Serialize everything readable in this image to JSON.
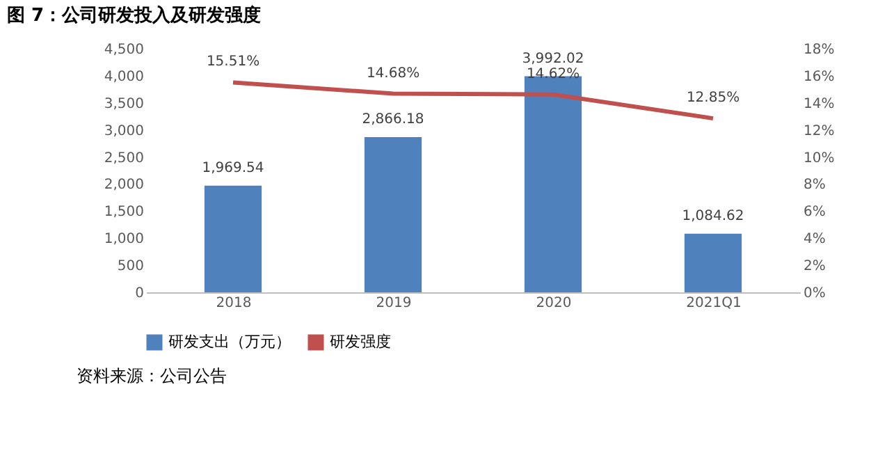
{
  "chart_data": {
    "type": "bar",
    "title": "图 7：公司研发投入及研发强度",
    "categories": [
      "2018",
      "2019",
      "2020",
      "2021Q1"
    ],
    "series": [
      {
        "name": "研发支出（万元）",
        "color": "#4f81bd",
        "values": [
          1969.54,
          2866.18,
          3992.02,
          1084.62
        ],
        "value_labels": [
          "1,969.54",
          "2,866.18",
          "3,992.02",
          "1,084.62"
        ]
      },
      {
        "name": "研发强度",
        "type": "line",
        "axis": "y2",
        "color": "#c0504d",
        "values": [
          15.51,
          14.68,
          14.62,
          12.85
        ],
        "value_labels": [
          "15.51%",
          "14.68%",
          "14.62%",
          "12.85%"
        ]
      }
    ],
    "ylim": [
      0,
      4500
    ],
    "yticks": [
      0,
      {
        "value": 500,
        "label": "500"
      },
      {
        "value": 1000,
        "label": "1,000"
      },
      {
        "value": 1500,
        "label": "1,500"
      },
      {
        "value": 2000,
        "label": "2,000"
      },
      {
        "value": 2500,
        "label": "2,500"
      },
      {
        "value": 3000,
        "label": "3,000"
      },
      {
        "value": 3500,
        "label": "3,500"
      },
      {
        "value": 4000,
        "label": "4,000"
      },
      {
        "value": 4500,
        "label": "4,500"
      }
    ],
    "y2lim": [
      0,
      18
    ],
    "y2ticks": [
      {
        "value": 0,
        "label": "0%"
      },
      {
        "value": 2,
        "label": "2%"
      },
      {
        "value": 4,
        "label": "4%"
      },
      {
        "value": 6,
        "label": "6%"
      },
      {
        "value": 8,
        "label": "8%"
      },
      {
        "value": 10,
        "label": "10%"
      },
      {
        "value": 12,
        "label": "12%"
      },
      {
        "value": 14,
        "label": "14%"
      },
      {
        "value": 16,
        "label": "16%"
      },
      {
        "value": 18,
        "label": "18%"
      }
    ],
    "grid": false,
    "legend": "bottom",
    "annotations": [
      "资料来源：公司公告"
    ]
  }
}
